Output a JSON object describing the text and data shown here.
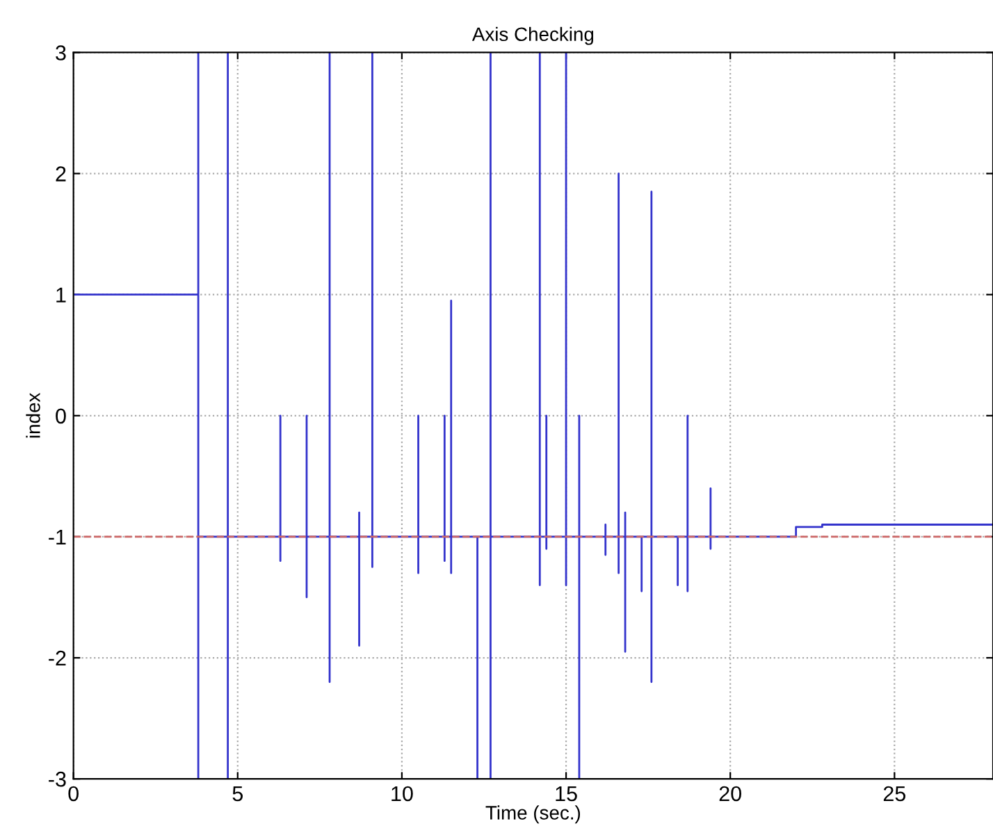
{
  "chart_data": {
    "type": "line",
    "title": "Axis Checking",
    "xlabel": "Time (sec.)",
    "ylabel": "index",
    "xlim": [
      0,
      28
    ],
    "ylim": [
      -3,
      3
    ],
    "xticks": [
      0,
      5,
      10,
      15,
      20,
      25
    ],
    "yticks": [
      -3,
      -2,
      -1,
      0,
      1,
      2,
      3
    ],
    "grid": true,
    "line_style": "solid",
    "marker": "none",
    "ref_lines": [
      {
        "axis": "y",
        "value": -1,
        "label": null,
        "color": "#cc6666",
        "line_style": "dashed"
      }
    ],
    "series": [
      {
        "color": "#3333cc",
        "x": [
          0,
          3.8,
          3.8,
          3.8,
          3.8,
          4.7,
          4.7,
          4.7,
          4.7,
          6.3,
          6.3,
          6.3,
          6.3,
          7.1,
          7.1,
          7.1,
          7.1,
          7.8,
          7.8,
          7.8,
          7.8,
          8.7,
          8.7,
          8.7,
          8.7,
          9.1,
          9.1,
          9.1,
          9.1,
          10.5,
          10.5,
          10.5,
          10.5,
          11.3,
          11.3,
          11.3,
          11.3,
          11.5,
          11.5,
          11.5,
          11.5,
          12.3,
          12.3,
          12.3,
          12.7,
          12.7,
          12.7,
          12.7,
          14.2,
          14.2,
          14.2,
          14.2,
          14.4,
          14.4,
          14.4,
          14.4,
          15.0,
          15.0,
          15.0,
          15.0,
          15.4,
          15.4,
          15.4,
          15.4,
          16.2,
          16.2,
          16.2,
          16.2,
          16.6,
          16.6,
          16.6,
          16.6,
          16.8,
          16.8,
          16.8,
          16.8,
          17.3,
          17.3,
          17.3,
          17.6,
          17.6,
          17.6,
          17.6,
          18.4,
          18.4,
          18.4,
          18.7,
          18.7,
          18.7,
          18.7,
          19.4,
          19.4,
          19.4,
          19.4,
          22.0,
          22.0,
          22.8,
          22.8,
          28
        ],
        "values": [
          1,
          1,
          3,
          -3,
          -1,
          -1,
          3,
          -3,
          -1,
          -1,
          0,
          -1.2,
          -1,
          -1,
          0,
          -1.5,
          -1,
          -1,
          3,
          -2.2,
          -1,
          -1,
          -0.8,
          -1.9,
          -1,
          -1,
          3,
          -1.25,
          -1,
          -1,
          0,
          -1.3,
          -1,
          -1,
          0,
          -1.2,
          -1,
          -1,
          0.95,
          -1.3,
          -1,
          -1,
          -3,
          -1,
          -1,
          3,
          -3,
          -1,
          -1,
          3,
          -1.4,
          -1,
          -1,
          0,
          -1.1,
          -1,
          -1,
          3,
          -1.4,
          -1,
          -1,
          0,
          -3,
          -1,
          -1,
          -0.9,
          -1.15,
          -1,
          -1,
          2,
          -1.3,
          -1,
          -1,
          -0.8,
          -1.95,
          -1,
          -1,
          -1.45,
          -1,
          -1,
          1.85,
          -2.2,
          -1,
          -1,
          -1.4,
          -1,
          -1,
          0,
          -1.45,
          -1,
          -1,
          -0.6,
          -1.1,
          -1,
          -1,
          -0.92,
          -0.92,
          -0.9,
          -0.9
        ]
      }
    ]
  }
}
